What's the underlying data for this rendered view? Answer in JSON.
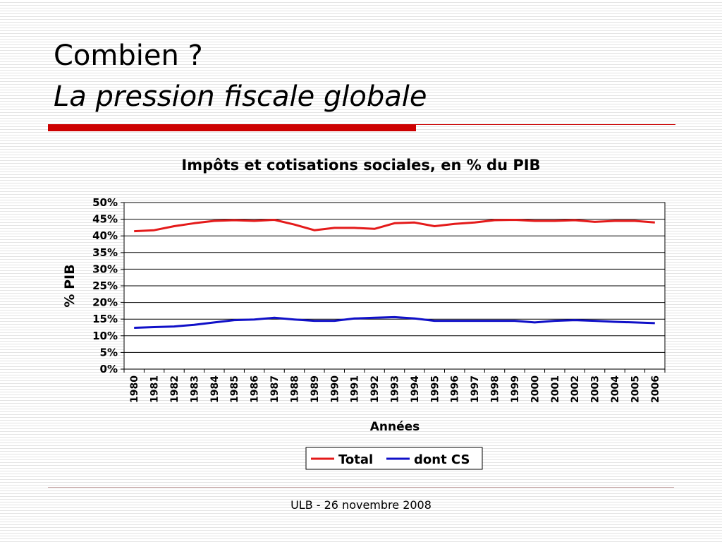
{
  "slide": {
    "title": "Combien ?",
    "subtitle": "La pression fiscale globale",
    "footer": "ULB - 26 novembre 2008",
    "accent_color": "#cc0000",
    "thin_line_color": "#cc0000",
    "bottom_line_color": "#c8a6a6"
  },
  "chart_data": {
    "type": "line",
    "title": "Impôts et cotisations sociales, en % du PIB",
    "xlabel": "Années",
    "ylabel": "% PIB",
    "x": [
      "1980",
      "1981",
      "1982",
      "1983",
      "1984",
      "1985",
      "1986",
      "1987",
      "1988",
      "1989",
      "1990",
      "1991",
      "1992",
      "1993",
      "1994",
      "1995",
      "1996",
      "1997",
      "1998",
      "1999",
      "2000",
      "2001",
      "2002",
      "2003",
      "2004",
      "2005",
      "2006"
    ],
    "ylim": [
      0,
      50
    ],
    "yticks": [
      0,
      5,
      10,
      15,
      20,
      25,
      30,
      35,
      40,
      45,
      50
    ],
    "ytick_suffix": "%",
    "grid": true,
    "legend_position": "bottom",
    "series": [
      {
        "name": "Total",
        "color": "#e41a1a",
        "values": [
          41.4,
          41.7,
          42.9,
          43.8,
          44.5,
          44.7,
          44.5,
          44.8,
          43.4,
          41.7,
          42.4,
          42.4,
          42.1,
          43.8,
          44.0,
          42.9,
          43.6,
          44.0,
          44.7,
          44.8,
          44.5,
          44.5,
          44.7,
          44.2,
          44.5,
          44.5,
          44.0
        ]
      },
      {
        "name": "dont CS",
        "color": "#1010c8",
        "values": [
          12.4,
          12.6,
          12.8,
          13.3,
          14.0,
          14.7,
          14.9,
          15.4,
          14.9,
          14.5,
          14.5,
          15.2,
          15.4,
          15.6,
          15.2,
          14.5,
          14.5,
          14.5,
          14.5,
          14.5,
          14.0,
          14.5,
          14.7,
          14.5,
          14.2,
          14.0,
          13.8
        ]
      }
    ]
  }
}
